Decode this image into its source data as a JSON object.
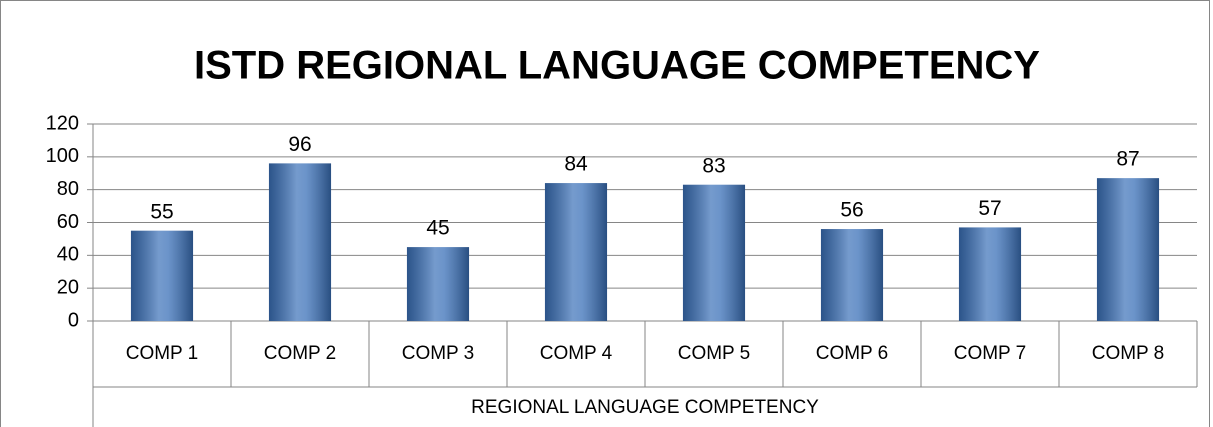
{
  "chart_data": {
    "type": "bar",
    "title": "ISTD REGIONAL LANGUAGE COMPETENCY",
    "xlabel": "REGIONAL LANGUAGE COMPETENCY",
    "categories": [
      "COMP 1",
      "COMP 2",
      "COMP 3",
      "COMP 4",
      "COMP 5",
      "COMP 6",
      "COMP 7",
      "COMP 8"
    ],
    "values": [
      55,
      96,
      45,
      84,
      83,
      56,
      57,
      87
    ],
    "color": "#3a70b8",
    "ylim": [
      0,
      120
    ],
    "yticks": [
      0,
      20,
      40,
      60,
      80,
      100,
      120
    ],
    "grid": true
  }
}
